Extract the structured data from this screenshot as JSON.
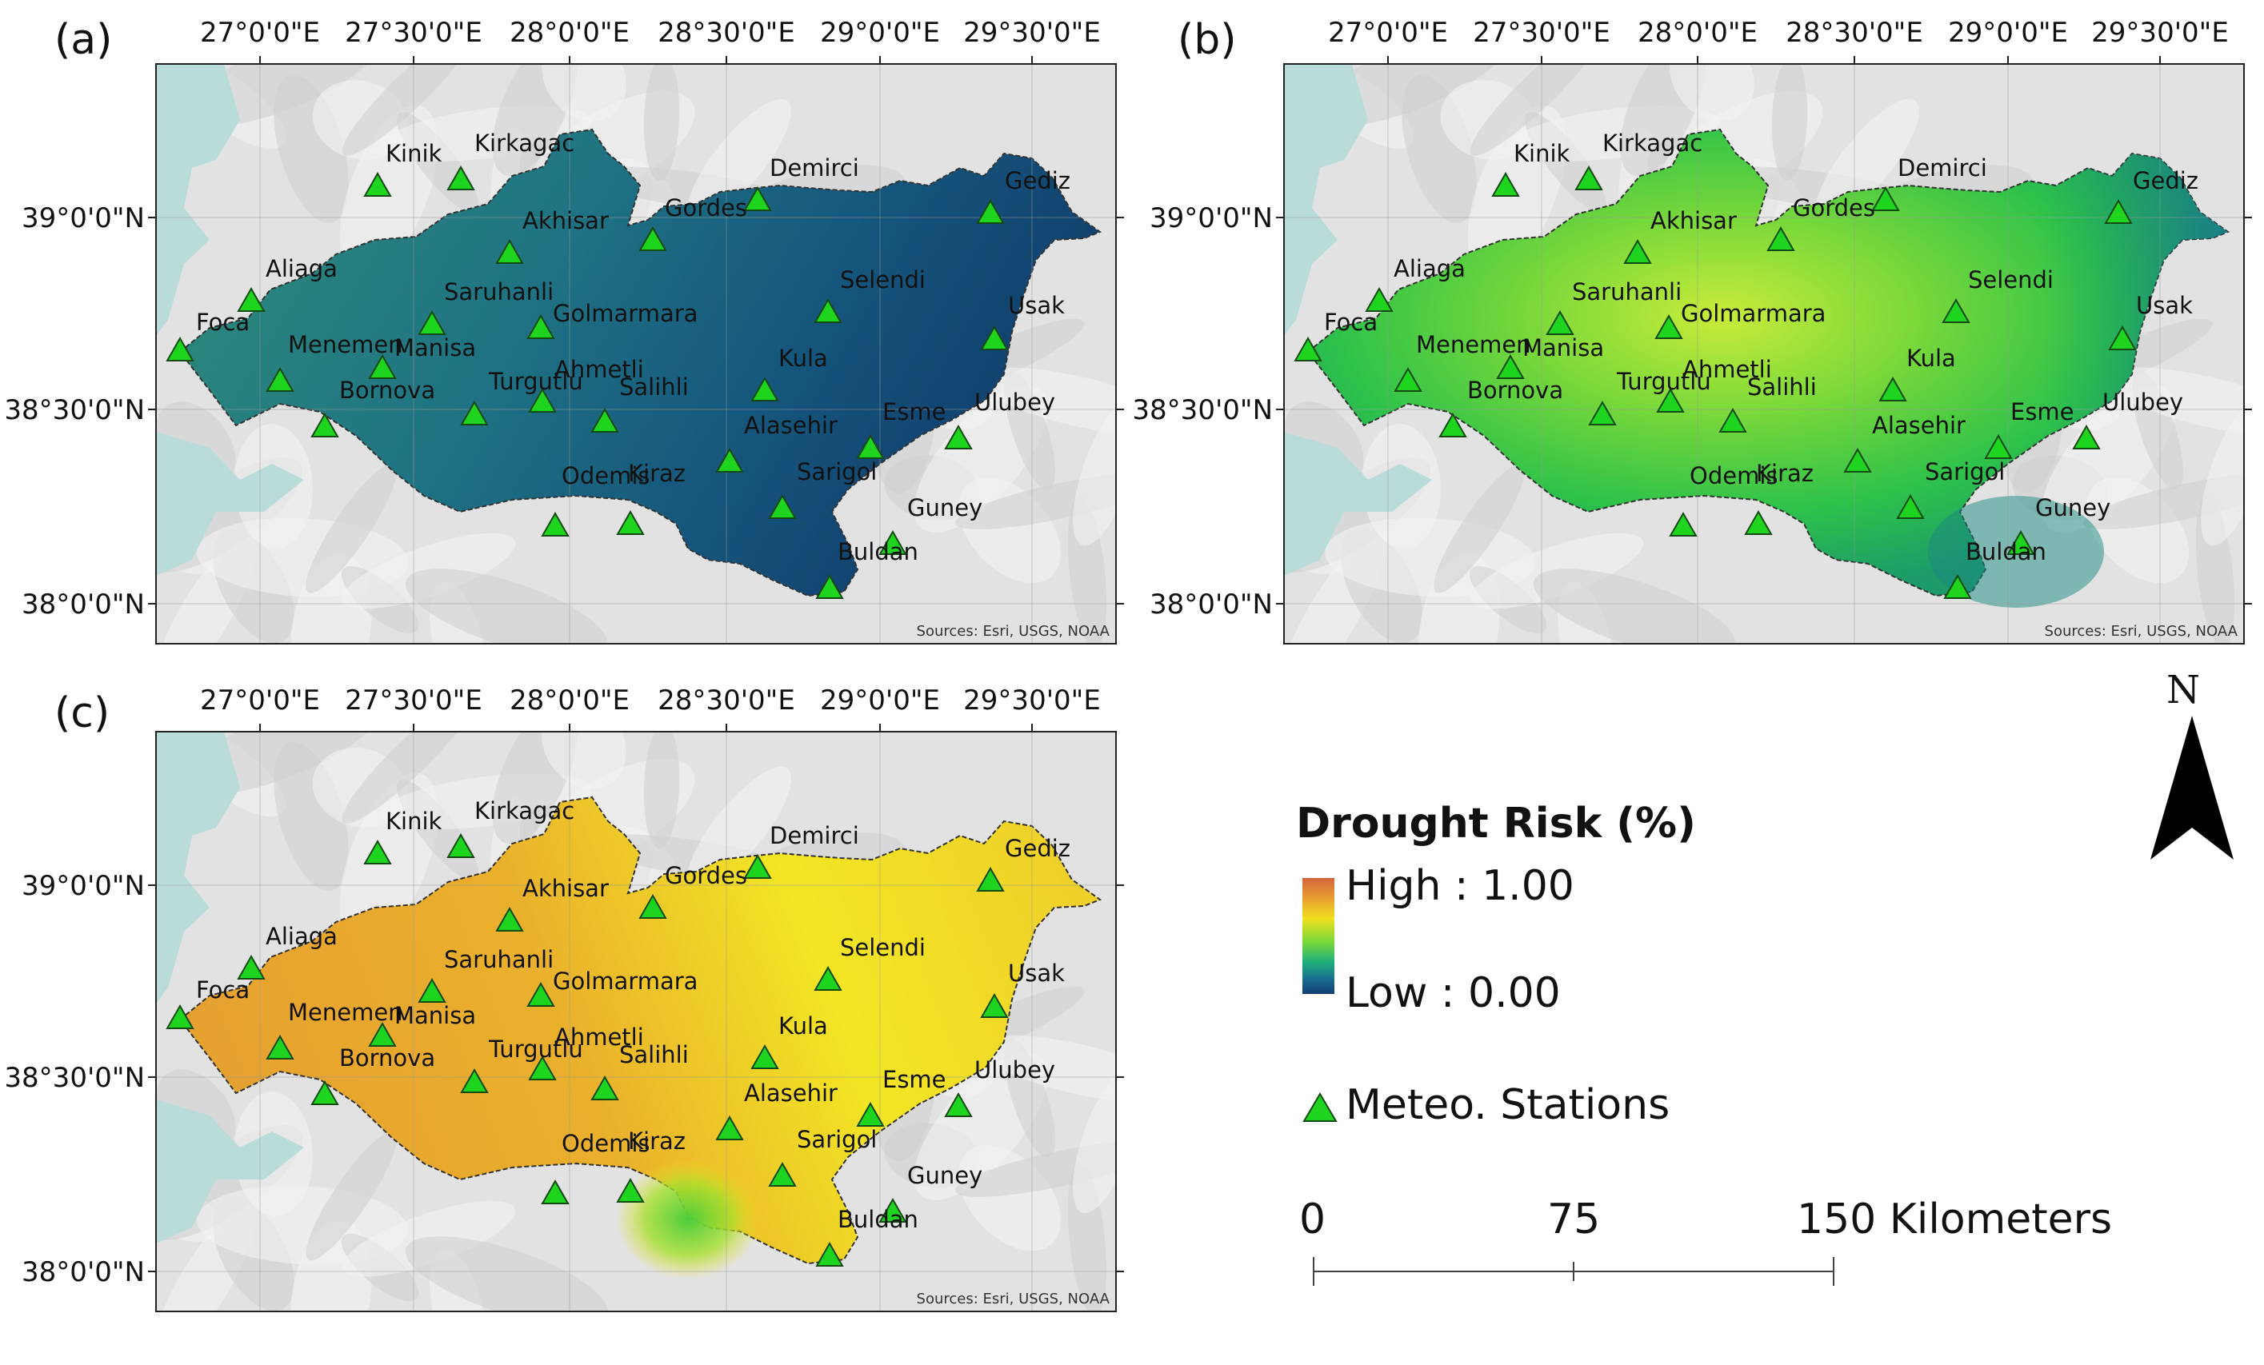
{
  "panels": [
    {
      "id": "a",
      "label": "(a)",
      "theme": "a"
    },
    {
      "id": "b",
      "label": "(b)",
      "theme": "b"
    },
    {
      "id": "c",
      "label": "(c)",
      "theme": "c"
    }
  ],
  "longitude_labels": [
    "27°0'0\"E",
    "27°30'0\"E",
    "28°0'0\"E",
    "28°30'0\"E",
    "29°0'0\"E",
    "29°30'0\"E"
  ],
  "latitude_labels": [
    "39°0'0\"N",
    "38°30'0\"N",
    "38°0'0\"N"
  ],
  "source_text": "Sources: Esri, USGS, NOAA",
  "stations": [
    "Kinik",
    "Kirkagac",
    "Demirci",
    "Gediz",
    "Akhisar",
    "Gordes",
    "Aliaga",
    "Selendi",
    "Foca",
    "Saruhanli",
    "Golmarmara",
    "Usak",
    "Menemen",
    "Manisa",
    "Ahmetli",
    "Kula",
    "Bornova",
    "Turgutlu",
    "Salihli",
    "Ulubey",
    "Esme",
    "Alasehir",
    "Sarigol",
    "Odemis",
    "Kiraz",
    "Guney",
    "Buldan"
  ],
  "legend": {
    "title": "Drought Risk (%)",
    "high": "High : 1.00",
    "low": "Low : 0.00",
    "stations_label": "Meteo. Stations",
    "scale": [
      "0",
      "75",
      "150 Kilometers"
    ]
  },
  "north": "N",
  "colors": {
    "station": "#1fd41f",
    "sea": "#b9dcd8",
    "terrain": "#e4e4e4"
  }
}
